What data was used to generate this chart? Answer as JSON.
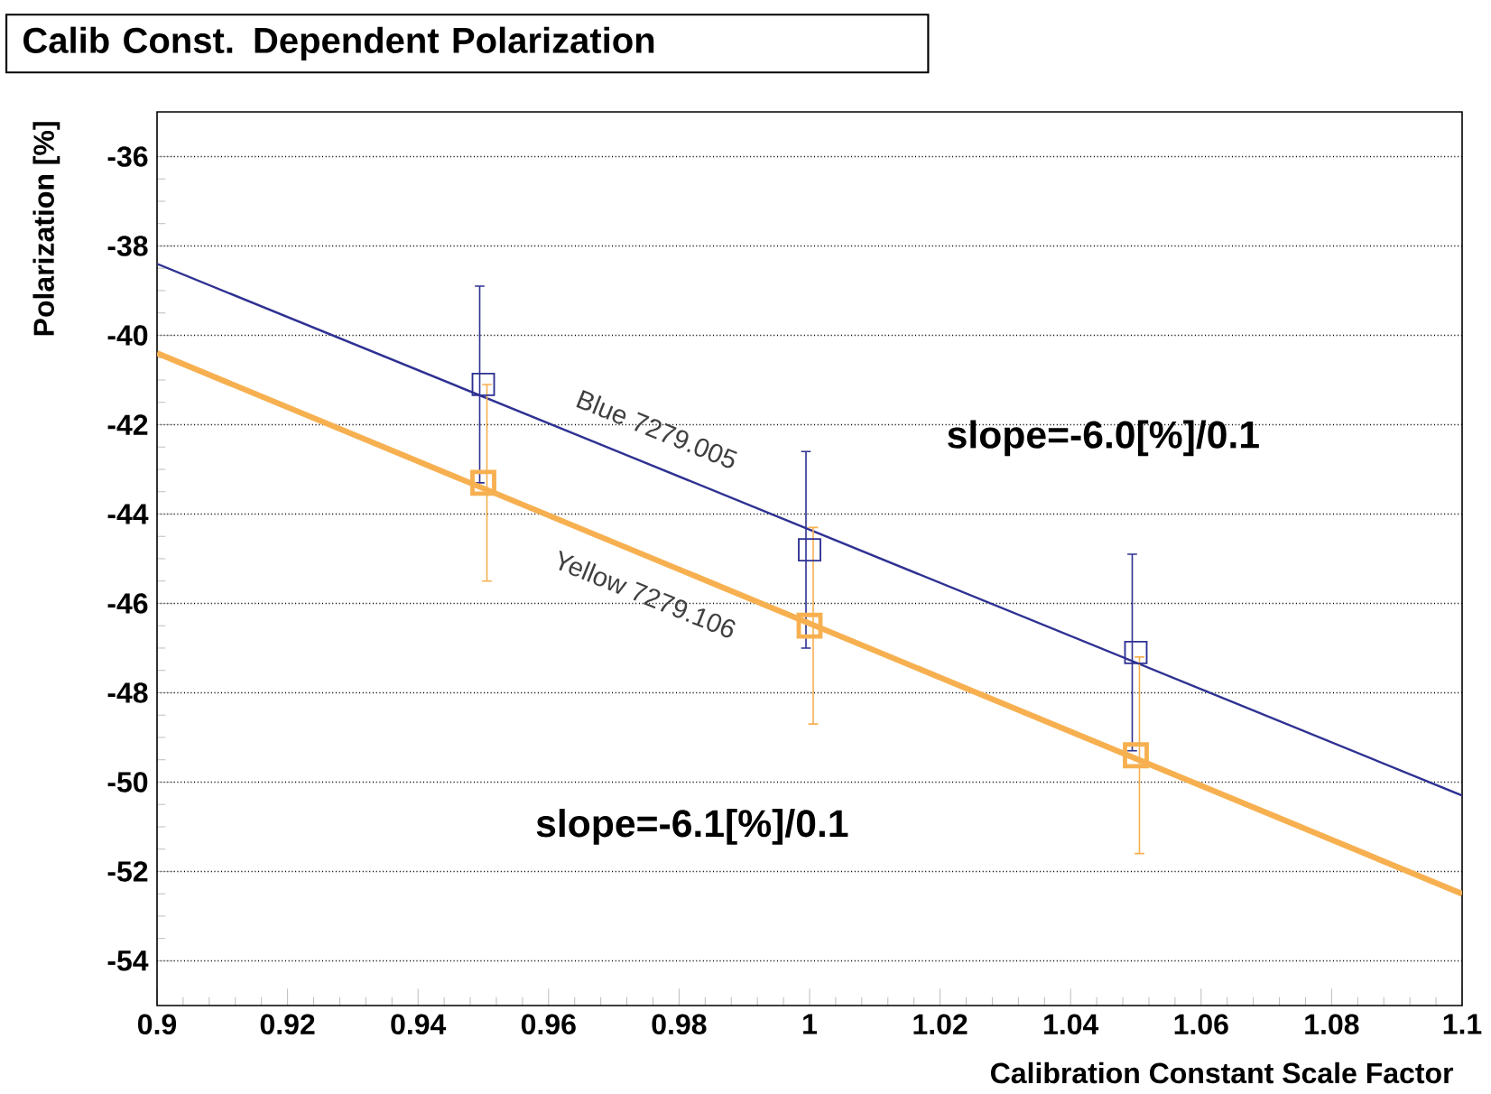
{
  "chart_data": {
    "type": "scatter",
    "title": "Calib Const. Dependent Polarization",
    "xlabel": "Calibration Constant Scale Factor",
    "ylabel": "Polarization [%]",
    "xlim": [
      0.9,
      1.1
    ],
    "xticks": [
      0.9,
      0.92,
      0.94,
      0.96,
      0.98,
      1,
      1.02,
      1.04,
      1.06,
      1.08,
      1.1
    ],
    "ylim": [
      -55,
      -35
    ],
    "yticks": [
      -54,
      -52,
      -50,
      -48,
      -46,
      -44,
      -42,
      -40,
      -38,
      -36
    ],
    "grid": "y",
    "series": [
      {
        "color": "#2e3192",
        "marker": "square",
        "x": [
          0.95,
          1.0,
          1.05
        ],
        "values": [
          -41.1,
          -44.8,
          -47.1
        ],
        "errors": [
          2.2,
          2.2,
          2.2
        ]
      },
      {
        "type": "line",
        "color": "#2e3192",
        "marker": "none",
        "x": [
          0.9,
          1.1
        ],
        "values": [
          -38.4,
          -50.3
        ]
      },
      {
        "color": "#f7b050",
        "marker": "square",
        "x": [
          0.95,
          1.0,
          1.05
        ],
        "values": [
          -43.3,
          -46.5,
          -49.4
        ],
        "errors": [
          2.2,
          2.2,
          2.2
        ]
      },
      {
        "type": "line",
        "color": "#f7b050",
        "marker": "none",
        "x": [
          0.9,
          1.1
        ],
        "values": [
          -40.4,
          -52.5
        ]
      }
    ],
    "annotations": [
      "Blue 7279.005",
      "Yellow 7279.106",
      "slope=-6.0[%]/0.1",
      "slope=-6.1[%]/0.1"
    ]
  }
}
